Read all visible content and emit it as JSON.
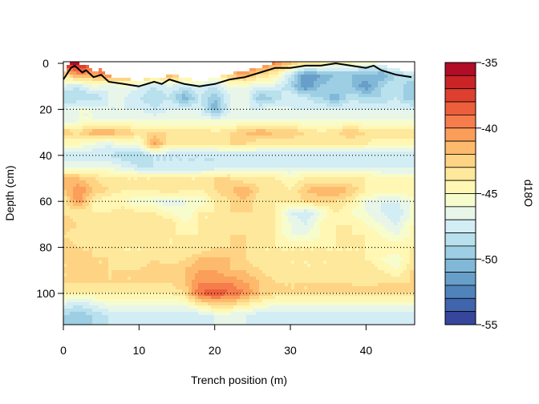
{
  "chart_data": {
    "type": "heatmap",
    "subtype": "filled-contour",
    "title": "",
    "xlabel": "Trench position (m)",
    "ylabel": "Depth (cm)",
    "colorbar_label": "d18O",
    "xlim": [
      0,
      46
    ],
    "ylim": [
      0,
      114
    ],
    "y_reversed": true,
    "x_ticks": [
      0,
      10,
      20,
      30,
      40
    ],
    "y_ticks": [
      0,
      20,
      40,
      60,
      80,
      100
    ],
    "colorbar_ticks": [
      -35,
      -40,
      -45,
      -50,
      -55
    ],
    "zlim": [
      -55,
      -35
    ],
    "level_step": 1,
    "palette": "RdYlBu",
    "palette_colors": [
      "#a50026",
      "#d73027",
      "#f46d43",
      "#fdae61",
      "#fee090",
      "#ffffbf",
      "#e0f3f8",
      "#abd9e9",
      "#74add1",
      "#4575b4",
      "#313695"
    ],
    "grid": "dotted horizontal lines at 20, 40, 60, 80, 100 cm",
    "grid_depths": [
      20,
      40,
      60,
      80,
      100
    ],
    "surface_line": {
      "x": [
        0,
        1,
        1.5,
        2.5,
        3,
        4,
        5,
        6,
        8,
        10,
        11,
        12,
        13,
        14,
        15,
        16,
        18,
        20,
        22,
        24,
        26,
        28,
        30,
        32,
        34,
        36,
        38,
        40,
        41,
        42,
        44,
        46
      ],
      "y": [
        7,
        2,
        1,
        4,
        3,
        6,
        5,
        8,
        9,
        10,
        9,
        8,
        9,
        7,
        8,
        9,
        10,
        9,
        7,
        6,
        4,
        2,
        2,
        1,
        1,
        0,
        1,
        2,
        1,
        3,
        5,
        6
      ]
    },
    "x": [
      0,
      2,
      4,
      6,
      8,
      10,
      12,
      14,
      16,
      18,
      20,
      22,
      24,
      26,
      28,
      30,
      32,
      34,
      36,
      38,
      40,
      42,
      44,
      46
    ],
    "depths": [
      0,
      5,
      10,
      15,
      20,
      25,
      30,
      35,
      40,
      45,
      50,
      55,
      60,
      65,
      70,
      75,
      80,
      85,
      90,
      95,
      100,
      105,
      110
    ],
    "z": [
      [
        -36,
        -36,
        -38,
        -36,
        -38,
        -37,
        -36,
        -36,
        -38,
        -40,
        -40,
        -38,
        -38,
        -40,
        -40,
        -42,
        -44,
        -44,
        -45,
        -45,
        -46,
        -46,
        -45,
        -45
      ],
      [
        -44,
        -40,
        -41,
        -40,
        -40,
        -41,
        -42,
        -41,
        -42,
        -43,
        -44,
        -42,
        -41,
        -43,
        -44,
        -48,
        -52,
        -51,
        -50,
        -50,
        -50,
        -51,
        -49,
        -48
      ],
      [
        -47,
        -48,
        -46,
        -47,
        -46,
        -47,
        -48,
        -47,
        -48,
        -47,
        -48,
        -46,
        -46,
        -47,
        -47,
        -49,
        -52,
        -50,
        -49,
        -50,
        -52,
        -49,
        -48,
        -50
      ],
      [
        -49,
        -49,
        -49,
        -47,
        -47,
        -48,
        -49,
        -48,
        -51,
        -48,
        -50,
        -47,
        -46,
        -50,
        -49,
        -47,
        -48,
        -49,
        -51,
        -48,
        -49,
        -49,
        -48,
        -50
      ],
      [
        -47,
        -46,
        -46,
        -47,
        -47,
        -47,
        -48,
        -47,
        -47,
        -47,
        -51,
        -47,
        -47,
        -47,
        -46,
        -47,
        -47,
        -47,
        -47,
        -47,
        -47,
        -47,
        -47,
        -47
      ],
      [
        -47,
        -46,
        -46,
        -46,
        -46,
        -46,
        -46,
        -46,
        -46,
        -46,
        -46,
        -46,
        -46,
        -46,
        -46,
        -46,
        -46,
        -46,
        -46,
        -46,
        -46,
        -46,
        -46,
        -46
      ],
      [
        -42,
        -43,
        -41,
        -41,
        -42,
        -43,
        -43,
        -43,
        -43,
        -43,
        -44,
        -43,
        -42,
        -41,
        -42,
        -42,
        -43,
        -44,
        -43,
        -42,
        -43,
        -43,
        -43,
        -43
      ],
      [
        -45,
        -45,
        -46,
        -47,
        -45,
        -46,
        -40,
        -44,
        -44,
        -44,
        -44,
        -43,
        -43,
        -44,
        -44,
        -44,
        -44,
        -44,
        -44,
        -44,
        -44,
        -45,
        -45,
        -45
      ],
      [
        -48,
        -48,
        -48,
        -48,
        -49,
        -49,
        -48,
        -48,
        -48,
        -48,
        -48,
        -48,
        -48,
        -48,
        -48,
        -48,
        -48,
        -48,
        -48,
        -48,
        -48,
        -48,
        -48,
        -48
      ],
      [
        -46,
        -46,
        -46,
        -46,
        -47,
        -48,
        -48,
        -48,
        -48,
        -48,
        -48,
        -47,
        -47,
        -47,
        -47,
        -47,
        -47,
        -47,
        -47,
        -47,
        -47,
        -47,
        -47,
        -47
      ],
      [
        -42,
        -42,
        -43,
        -44,
        -44,
        -44,
        -44,
        -44,
        -44,
        -44,
        -43,
        -43,
        -44,
        -44,
        -44,
        -45,
        -44,
        -44,
        -44,
        -44,
        -44,
        -45,
        -45,
        -45
      ],
      [
        -42,
        -40,
        -42,
        -43,
        -44,
        -44,
        -44,
        -43,
        -44,
        -44,
        -43,
        -42,
        -41,
        -43,
        -43,
        -44,
        -42,
        -41,
        -41,
        -42,
        -44,
        -44,
        -44,
        -44
      ],
      [
        -44,
        -40,
        -44,
        -45,
        -45,
        -46,
        -46,
        -47,
        -46,
        -46,
        -44,
        -43,
        -42,
        -44,
        -44,
        -44,
        -43,
        -43,
        -43,
        -44,
        -46,
        -47,
        -47,
        -46
      ],
      [
        -43,
        -44,
        -44,
        -44,
        -43,
        -44,
        -44,
        -45,
        -46,
        -44,
        -44,
        -43,
        -43,
        -43,
        -44,
        -47,
        -48,
        -46,
        -44,
        -45,
        -46,
        -47,
        -48,
        -46
      ],
      [
        -42,
        -43,
        -43,
        -44,
        -44,
        -43,
        -43,
        -43,
        -45,
        -44,
        -44,
        -43,
        -44,
        -44,
        -44,
        -46,
        -47,
        -45,
        -44,
        -44,
        -45,
        -46,
        -47,
        -45
      ],
      [
        -43,
        -44,
        -44,
        -44,
        -44,
        -44,
        -44,
        -44,
        -44,
        -44,
        -44,
        -43,
        -43,
        -44,
        -44,
        -46,
        -46,
        -45,
        -44,
        -44,
        -44,
        -45,
        -46,
        -45
      ],
      [
        -42,
        -43,
        -43,
        -44,
        -44,
        -44,
        -44,
        -44,
        -44,
        -44,
        -43,
        -43,
        -43,
        -44,
        -44,
        -44,
        -44,
        -44,
        -44,
        -44,
        -44,
        -44,
        -44,
        -44
      ],
      [
        -43,
        -43,
        -43,
        -43,
        -44,
        -44,
        -43,
        -44,
        -43,
        -42,
        -42,
        -42,
        -43,
        -44,
        -44,
        -44,
        -44,
        -44,
        -44,
        -44,
        -44,
        -45,
        -46,
        -44
      ],
      [
        -43,
        -43,
        -43,
        -43,
        -43,
        -43,
        -42,
        -42,
        -42,
        -41,
        -41,
        -42,
        -42,
        -43,
        -44,
        -44,
        -44,
        -44,
        -44,
        -44,
        -43,
        -44,
        -45,
        -43
      ],
      [
        -43,
        -43,
        -43,
        -43,
        -43,
        -43,
        -43,
        -43,
        -42,
        -40,
        -40,
        -40,
        -41,
        -42,
        -43,
        -43,
        -43,
        -43,
        -43,
        -43,
        -43,
        -43,
        -43,
        -43
      ],
      [
        -44,
        -44,
        -44,
        -44,
        -44,
        -44,
        -44,
        -44,
        -43,
        -39,
        -38,
        -39,
        -40,
        -42,
        -43,
        -43,
        -43,
        -43,
        -43,
        -43,
        -43,
        -43,
        -43,
        -43
      ],
      [
        -47,
        -48,
        -47,
        -46,
        -46,
        -46,
        -46,
        -46,
        -46,
        -44,
        -43,
        -43,
        -44,
        -45,
        -46,
        -46,
        -46,
        -46,
        -46,
        -46,
        -46,
        -46,
        -46,
        -46
      ],
      [
        -49,
        -50,
        -49,
        -48,
        -48,
        -48,
        -48,
        -48,
        -48,
        -48,
        -47,
        -47,
        -47,
        -48,
        -48,
        -48,
        -48,
        -48,
        -48,
        -48,
        -48,
        -48,
        -48,
        -48
      ]
    ]
  }
}
